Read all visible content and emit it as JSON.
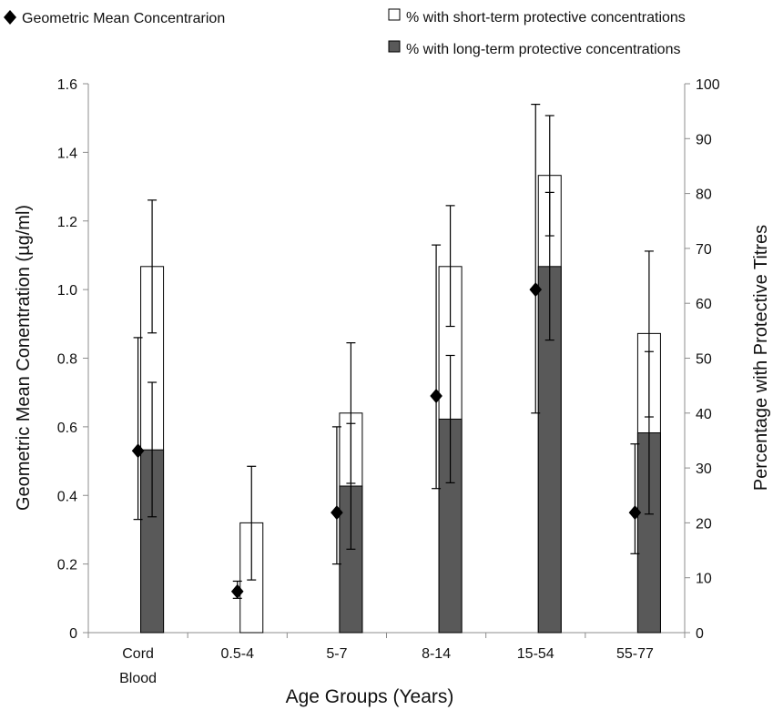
{
  "chart_data": {
    "type": "bar",
    "categories": [
      {
        "line1": "Cord",
        "line2": "Blood"
      },
      {
        "line1": "0.5-4",
        "line2": ""
      },
      {
        "line1": "5-7",
        "line2": ""
      },
      {
        "line1": "8-14",
        "line2": ""
      },
      {
        "line1": "15-54",
        "line2": ""
      },
      {
        "line1": "55-77",
        "line2": ""
      }
    ],
    "xlabel": "Age Groups (Years)",
    "ylabel_left": "Geometric Mean Conentration (µg/ml)",
    "ylabel_right": "Percentage with Protective Titres",
    "ylim_left": [
      0,
      1.6
    ],
    "yticks_left": [
      "0",
      "0.2",
      "0.4",
      "0.6",
      "0.8",
      "1.0",
      "1.2",
      "1.4",
      "1.6"
    ],
    "ylim_right": [
      0,
      100
    ],
    "yticks_right": [
      "0",
      "10",
      "20",
      "30",
      "40",
      "50",
      "60",
      "70",
      "80",
      "90",
      "100"
    ],
    "legend": {
      "position": "top",
      "gmc": "Geometric Mean Concentrarion",
      "short_term": "% with short-term protective concentrations",
      "long_term": "% with long-term protective concentrations"
    },
    "geometric_mean": [
      {
        "value": 0.53,
        "low": 0.33,
        "high": 0.86
      },
      {
        "value": 0.12,
        "low": 0.1,
        "high": 0.15
      },
      {
        "value": 0.35,
        "low": 0.2,
        "high": 0.6
      },
      {
        "value": 0.69,
        "low": 0.42,
        "high": 1.13
      },
      {
        "value": 1.0,
        "low": 0.64,
        "high": 1.54
      },
      {
        "value": 0.35,
        "low": 0.23,
        "high": 0.55
      }
    ],
    "short_term_pct": [
      {
        "value": 66.7,
        "low": 54.6,
        "high": 78.8
      },
      {
        "value": 20.0,
        "low": 9.6,
        "high": 30.3
      },
      {
        "value": 40.0,
        "low": 27.2,
        "high": 52.8
      },
      {
        "value": 66.7,
        "low": 55.8,
        "high": 77.8
      },
      {
        "value": 83.3,
        "low": 72.3,
        "high": 94.2
      },
      {
        "value": 54.5,
        "low": 39.3,
        "high": 69.5
      }
    ],
    "long_term_pct": [
      {
        "value": 33.3,
        "low": 21.1,
        "high": 45.6
      },
      {
        "value": 0,
        "low": null,
        "high": null
      },
      {
        "value": 26.7,
        "low": 15.2,
        "high": 38.1
      },
      {
        "value": 38.9,
        "low": 27.3,
        "high": 50.5
      },
      {
        "value": 66.7,
        "low": 53.3,
        "high": 80.2
      },
      {
        "value": 36.4,
        "low": 21.6,
        "high": 51.2
      }
    ],
    "colors": {
      "short_term": "#ffffff",
      "long_term": "#595959",
      "gmc_marker": "#000000",
      "axis": "#8c8c8c"
    }
  }
}
